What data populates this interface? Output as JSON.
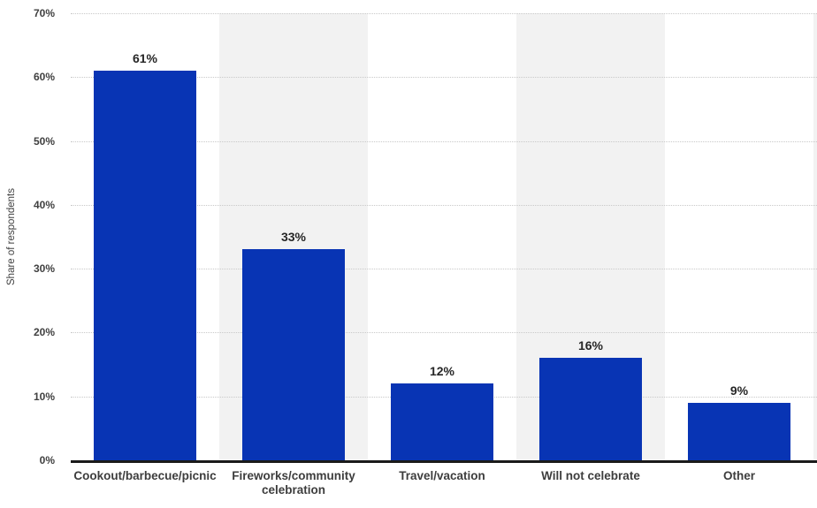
{
  "chart_data": {
    "type": "bar",
    "title": "",
    "xlabel": "",
    "ylabel": "Share of respondents",
    "categories": [
      "Cookout/barbecue/picnic",
      "Fireworks/community celebration",
      "Travel/vacation",
      "Will not celebrate",
      "Other"
    ],
    "categories_display": [
      "Cookout/barbecue/picnic",
      "Fireworks/community\ncelebration",
      "Travel/vacation",
      "Will not celebrate",
      "Other"
    ],
    "values": [
      61,
      33,
      12,
      16,
      9
    ],
    "value_labels": [
      "61%",
      "33%",
      "12%",
      "16%",
      "9%"
    ],
    "ylim": [
      0,
      70
    ],
    "yticks": [
      0,
      10,
      20,
      30,
      40,
      50,
      60,
      70
    ],
    "ytick_labels": [
      "0%",
      "10%",
      "20%",
      "30%",
      "40%",
      "50%",
      "60%",
      "70%"
    ],
    "grid": "horizontal-dotted",
    "legend": "none",
    "plot_bands": "alternating vertical stripes behind categories 2 and 4, plus sliver at right edge",
    "colors": {
      "bar": "#0834b4",
      "band": "#f2f2f2",
      "gridline": "#c9c9c9",
      "axis_line": "#1a1a1a",
      "axis_text": "#404040",
      "category_text": "#3d3d3d",
      "value_text": "#262626",
      "background": "#ffffff"
    }
  }
}
